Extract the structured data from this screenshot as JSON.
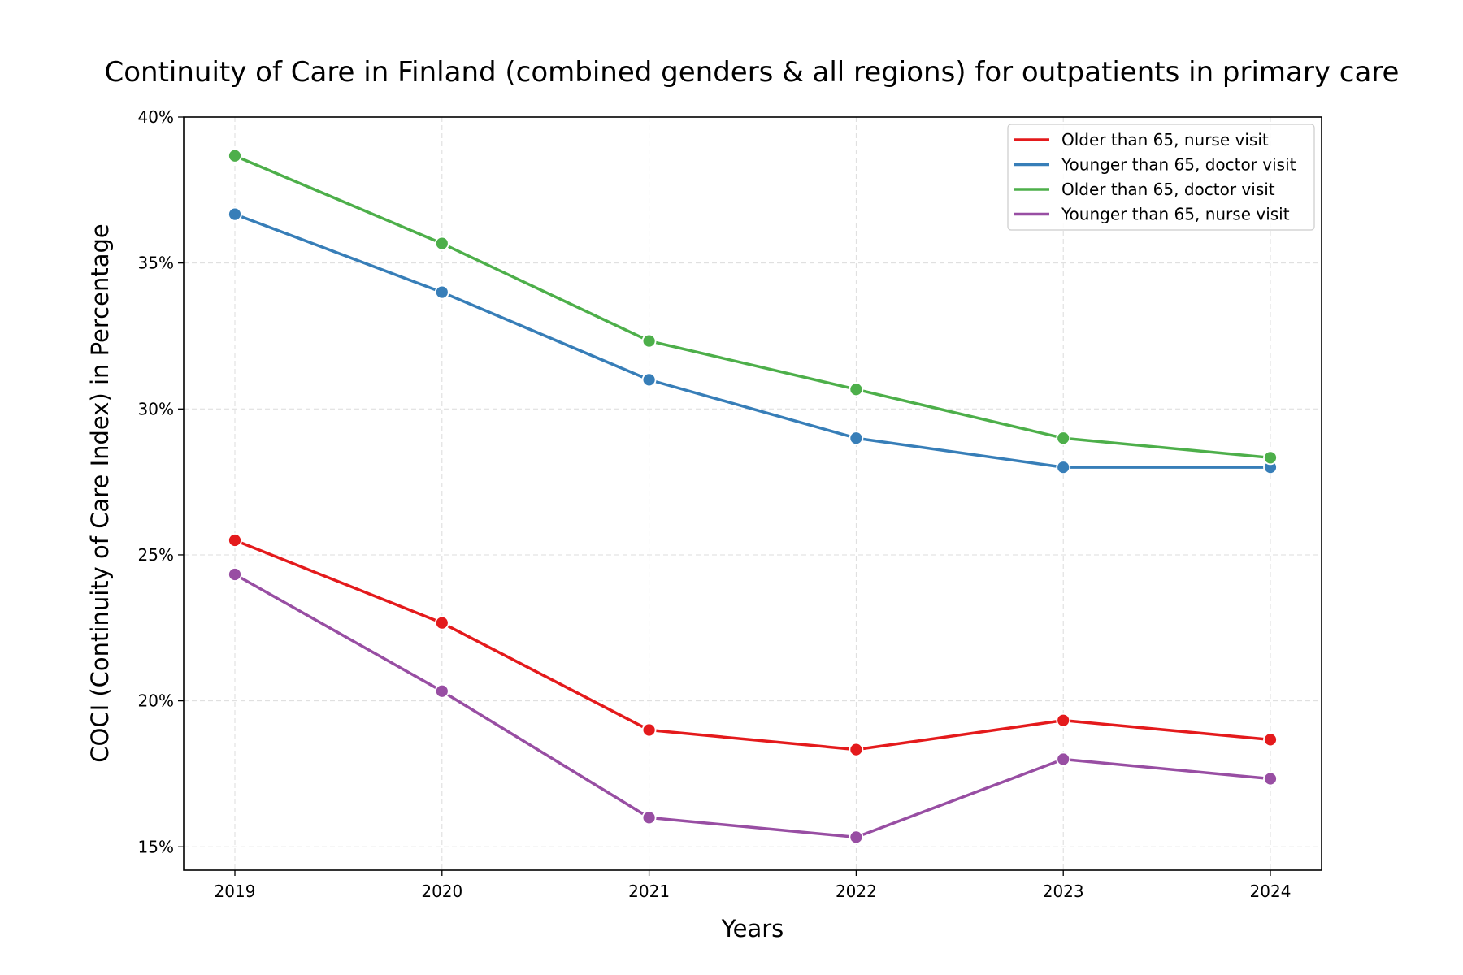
{
  "chart_data": {
    "type": "line",
    "title": "Continuity of Care in Finland (combined genders & all regions) for outpatients in primary care",
    "xlabel": "Years",
    "ylabel": "COCI (Continuity of Care Index) in Percentage",
    "x": [
      "2019",
      "2020",
      "2021",
      "2022",
      "2023",
      "2024"
    ],
    "ylim": [
      14.2,
      40
    ],
    "yticks": [
      15,
      20,
      25,
      30,
      35,
      40
    ],
    "ytick_labels": [
      "15%",
      "20%",
      "25%",
      "30%",
      "35%",
      "40%"
    ],
    "grid": true,
    "legend_position": "top-right",
    "series": [
      {
        "name": "Older than 65, nurse visit",
        "color": "#e41a1c",
        "values": [
          25.5,
          22.67,
          19.0,
          18.33,
          19.33,
          18.67
        ]
      },
      {
        "name": "Younger than 65, doctor visit",
        "color": "#377eb8",
        "values": [
          36.67,
          34.0,
          31.0,
          29.0,
          28.0,
          28.0
        ]
      },
      {
        "name": "Older than 65, doctor visit",
        "color": "#4daf4a",
        "values": [
          38.67,
          35.67,
          32.33,
          30.67,
          29.0,
          28.33
        ]
      },
      {
        "name": "Younger than 65, nurse visit",
        "color": "#984ea3",
        "values": [
          24.33,
          20.33,
          16.0,
          15.33,
          18.0,
          17.33
        ]
      }
    ]
  }
}
